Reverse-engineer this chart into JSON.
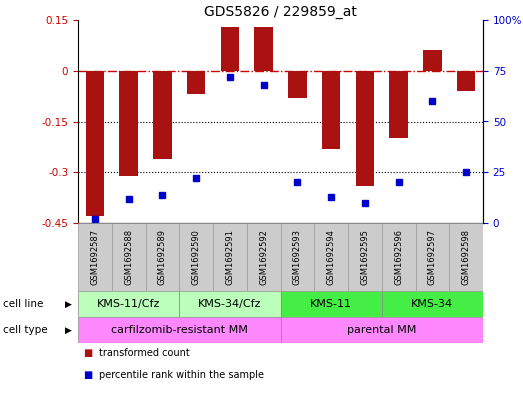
{
  "title": "GDS5826 / 229859_at",
  "samples": [
    "GSM1692587",
    "GSM1692588",
    "GSM1692589",
    "GSM1692590",
    "GSM1692591",
    "GSM1692592",
    "GSM1692593",
    "GSM1692594",
    "GSM1692595",
    "GSM1692596",
    "GSM1692597",
    "GSM1692598"
  ],
  "transformed_counts": [
    -0.43,
    -0.31,
    -0.26,
    -0.07,
    0.13,
    0.13,
    -0.08,
    -0.23,
    -0.34,
    -0.2,
    0.06,
    -0.06
  ],
  "percentile_ranks": [
    2,
    12,
    14,
    22,
    72,
    68,
    20,
    13,
    10,
    20,
    60,
    25
  ],
  "ylim_left": [
    -0.45,
    0.15
  ],
  "ylim_right": [
    0,
    100
  ],
  "yticks_left": [
    0.15,
    0,
    -0.15,
    -0.3,
    -0.45
  ],
  "yticks_right": [
    100,
    75,
    50,
    25,
    0
  ],
  "dotted_lines": [
    -0.15,
    -0.3
  ],
  "bar_color": "#aa1111",
  "dot_color": "#0000cc",
  "cell_line_groups": [
    {
      "label": "KMS-11/Cfz",
      "start": 0,
      "end": 3,
      "color": "#bbffbb"
    },
    {
      "label": "KMS-34/Cfz",
      "start": 3,
      "end": 6,
      "color": "#bbffbb"
    },
    {
      "label": "KMS-11",
      "start": 6,
      "end": 9,
      "color": "#44ee44"
    },
    {
      "label": "KMS-34",
      "start": 9,
      "end": 12,
      "color": "#44ee44"
    }
  ],
  "cell_type_groups": [
    {
      "label": "carfilzomib-resistant MM",
      "start": 0,
      "end": 6,
      "color": "#ff88ff"
    },
    {
      "label": "parental MM",
      "start": 6,
      "end": 12,
      "color": "#ff88ff"
    }
  ],
  "legend_items": [
    {
      "label": "transformed count",
      "color": "#aa1111"
    },
    {
      "label": "percentile rank within the sample",
      "color": "#0000cc"
    }
  ],
  "background_color": "#ffffff"
}
